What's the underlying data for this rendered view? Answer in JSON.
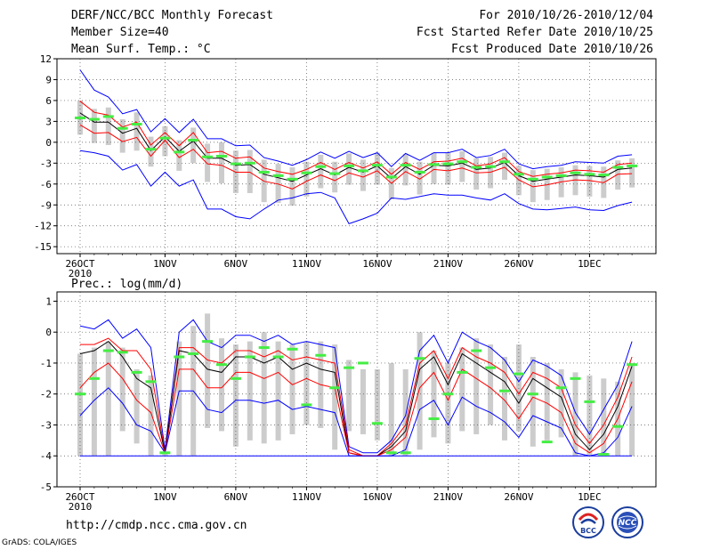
{
  "header": {
    "title": "DERF/NCC/BCC Monthly Forecast",
    "member_size": "Member Size=40",
    "variable": "Mean Surf. Temp.: °C",
    "period": "For 2010/10/26-2010/12/04",
    "fcst_started": "Fcst Started Refer Date 2010/10/25",
    "fcst_produced": "Fcst Produced Date 2010/10/26"
  },
  "footer": {
    "url": "http://cmdp.ncc.cma.gov.cn",
    "grads": "GrADS: COLA/IGES",
    "logo_bcc_text": "BCC",
    "logo_ncc_text": "NCC"
  },
  "colors": {
    "ensemble_mean": "#000000",
    "std_band": "#ff0000",
    "range_envelope": "#0000ff",
    "observed_marker": "#44ee44",
    "member_bar": "#cccccc"
  },
  "chart_data": [
    {
      "type": "line",
      "title": "Mean Surf. Temp.: °C",
      "ylim": [
        -16,
        12
      ],
      "yticks": [
        12,
        9,
        6,
        3,
        0,
        -3,
        -6,
        -9,
        -12,
        -15
      ],
      "x_days": 40,
      "xticks": [
        {
          "day": 0,
          "label": "26OCT",
          "sub": "2010"
        },
        {
          "day": 6,
          "label": "1NOV"
        },
        {
          "day": 11,
          "label": "6NOV"
        },
        {
          "day": 16,
          "label": "11NOV"
        },
        {
          "day": 21,
          "label": "16NOV"
        },
        {
          "day": 26,
          "label": "21NOV"
        },
        {
          "day": 31,
          "label": "26NOV"
        },
        {
          "day": 36,
          "label": "1DEC"
        }
      ],
      "series": [
        {
          "name": "max",
          "values": [
            10.4,
            7.5,
            6.5,
            4.1,
            4.7,
            1.5,
            3.4,
            1.4,
            3.3,
            0.5,
            0.5,
            -0.5,
            -0.4,
            -2.2,
            -2.7,
            -3.3,
            -2.5,
            -1.4,
            -2.3,
            -1.3,
            -2.2,
            -1.5,
            -3.5,
            -1.6,
            -2.6,
            -1.5,
            -1.5,
            -1.0,
            -2.2,
            -1.9,
            -1.0,
            -3.1,
            -3.8,
            -3.5,
            -3.3,
            -2.8,
            -2.9,
            -3.0,
            -2.0,
            -1.8
          ]
        },
        {
          "name": "std_upper",
          "values": [
            5.9,
            4.3,
            3.9,
            2.2,
            2.9,
            -0.4,
            1.4,
            -0.5,
            1.4,
            -1.5,
            -1.3,
            -2.3,
            -2.1,
            -3.7,
            -4.2,
            -4.6,
            -3.9,
            -2.9,
            -3.9,
            -2.9,
            -3.7,
            -2.8,
            -4.6,
            -2.9,
            -3.9,
            -2.8,
            -2.7,
            -2.3,
            -3.4,
            -3.1,
            -2.2,
            -4.2,
            -4.9,
            -4.6,
            -4.4,
            -4.0,
            -4.1,
            -4.3,
            -3.2,
            -3.0
          ]
        },
        {
          "name": "mean",
          "values": [
            4.2,
            2.9,
            2.9,
            1.3,
            2.0,
            -1.2,
            0.8,
            -1.3,
            0.2,
            -2.3,
            -2.3,
            -3.3,
            -3.2,
            -4.6,
            -5.1,
            -5.6,
            -4.7,
            -3.8,
            -4.7,
            -3.6,
            -4.3,
            -3.4,
            -5.2,
            -3.5,
            -4.6,
            -3.3,
            -3.4,
            -3.0,
            -3.9,
            -3.7,
            -2.9,
            -4.8,
            -5.6,
            -5.3,
            -5.0,
            -4.7,
            -4.8,
            -5.0,
            -3.9,
            -3.7
          ]
        },
        {
          "name": "std_lower",
          "values": [
            2.5,
            1.3,
            1.4,
            0.1,
            0.7,
            -2.0,
            0.3,
            -2.2,
            -1.0,
            -3.1,
            -3.3,
            -4.3,
            -4.3,
            -5.6,
            -6.0,
            -6.7,
            -5.6,
            -4.7,
            -5.5,
            -4.4,
            -5.0,
            -4.1,
            -5.9,
            -4.2,
            -5.3,
            -3.9,
            -4.1,
            -3.7,
            -4.4,
            -4.3,
            -3.6,
            -5.4,
            -6.4,
            -6.1,
            -5.7,
            -5.4,
            -5.5,
            -5.8,
            -4.6,
            -4.5
          ]
        },
        {
          "name": "min",
          "values": [
            -1.2,
            -1.5,
            -2.0,
            -4.0,
            -3.2,
            -6.3,
            -4.3,
            -6.3,
            -5.4,
            -9.6,
            -9.6,
            -10.7,
            -11.0,
            -9.6,
            -8.3,
            -8.0,
            -7.4,
            -7.2,
            -8.0,
            -11.7,
            -11.0,
            -10.2,
            -8.0,
            -8.2,
            -7.8,
            -7.4,
            -7.6,
            -7.6,
            -8.0,
            -8.3,
            -7.4,
            -8.8,
            -9.6,
            -9.7,
            -9.5,
            -9.3,
            -9.7,
            -9.8,
            -9.1,
            -8.6
          ]
        },
        {
          "name": "observed",
          "values": [
            3.5,
            3.3,
            3.7,
            2.0,
            2.6,
            -1.0,
            0.6,
            -1.4,
            0.3,
            -2.1,
            -2.0,
            -3.1,
            -3.0,
            -4.3,
            -4.8,
            -5.3,
            -4.4,
            -3.5,
            -4.5,
            -3.4,
            -4.1,
            -3.3,
            -5.0,
            -3.3,
            -4.3,
            -3.2,
            -3.1,
            -2.8,
            -3.6,
            -3.5,
            -2.8,
            -4.6,
            -5.3,
            -5.0,
            -4.8,
            -4.4,
            -4.6,
            -4.7,
            -3.6,
            -3.4
          ]
        }
      ],
      "bars": {
        "high": [
          6.0,
          4.8,
          5.0,
          3.3,
          4.3,
          0.8,
          2.3,
          0.3,
          2.1,
          -0.2,
          0.0,
          -1.2,
          -1.1,
          -2.5,
          -3.1,
          -3.6,
          -2.8,
          -1.8,
          -2.8,
          -1.6,
          -2.5,
          -1.5,
          -3.7,
          -1.7,
          -2.8,
          -1.5,
          -1.5,
          -1.3,
          -2.3,
          -2.1,
          -1.5,
          -3.4,
          -4.0,
          -3.8,
          -3.6,
          -3.3,
          -3.4,
          -3.5,
          -2.6,
          -2.3
        ],
        "low": [
          1.1,
          -0.1,
          -0.4,
          -1.5,
          -1.2,
          -3.5,
          -2.0,
          -4.1,
          -3.0,
          -5.7,
          -5.9,
          -7.3,
          -7.3,
          -8.6,
          -8.7,
          -9.1,
          -7.8,
          -6.6,
          -7.2,
          -6.1,
          -7.0,
          -6.1,
          -8.2,
          -6.2,
          -7.5,
          -6.0,
          -6.1,
          -5.7,
          -6.8,
          -6.6,
          -5.4,
          -7.6,
          -8.6,
          -8.3,
          -7.9,
          -7.6,
          -7.8,
          -8.0,
          -6.8,
          -6.5
        ]
      }
    },
    {
      "type": "line",
      "title": "Prec.: log(mm/d)",
      "ylim": [
        -5,
        1.3
      ],
      "yticks": [
        1,
        0,
        -1,
        -2,
        -3,
        -4,
        -5
      ],
      "x_days": 40,
      "xticks": [
        {
          "day": 0,
          "label": "26OCT",
          "sub": "2010"
        },
        {
          "day": 6,
          "label": "1NOV"
        },
        {
          "day": 11,
          "label": "6NOV"
        },
        {
          "day": 16,
          "label": "11NOV"
        },
        {
          "day": 21,
          "label": "16NOV"
        },
        {
          "day": 26,
          "label": "21NOV"
        },
        {
          "day": 31,
          "label": "26NOV"
        },
        {
          "day": 36,
          "label": "1DEC"
        }
      ],
      "series": [
        {
          "name": "max",
          "values": [
            0.2,
            0.1,
            0.4,
            -0.2,
            0.1,
            -0.5,
            -3.8,
            0.0,
            0.4,
            -0.3,
            -0.5,
            -0.1,
            -0.1,
            -0.3,
            -0.1,
            -0.4,
            -0.3,
            -0.4,
            -0.5,
            -3.7,
            -3.9,
            -3.9,
            -3.5,
            -2.7,
            -0.6,
            -0.1,
            -1.0,
            0.0,
            -0.3,
            -0.5,
            -0.9,
            -1.6,
            -0.9,
            -1.1,
            -1.4,
            -2.6,
            -3.3,
            -2.5,
            -1.7,
            -0.3
          ]
        },
        {
          "name": "std_upper",
          "values": [
            -0.4,
            -0.4,
            -0.2,
            -0.6,
            -0.6,
            -1.2,
            -3.9,
            -0.5,
            -0.5,
            -0.9,
            -1.0,
            -0.6,
            -0.6,
            -0.8,
            -0.6,
            -0.9,
            -0.8,
            -0.9,
            -1.0,
            -3.8,
            -4.0,
            -4.0,
            -3.6,
            -3.0,
            -1.0,
            -0.6,
            -1.5,
            -0.5,
            -0.8,
            -1.0,
            -1.3,
            -2.0,
            -1.3,
            -1.5,
            -1.8,
            -3.0,
            -3.6,
            -3.0,
            -2.1,
            -0.8
          ]
        },
        {
          "name": "mean",
          "values": [
            -0.7,
            -0.6,
            -0.3,
            -0.8,
            -1.5,
            -1.8,
            -3.9,
            -0.6,
            -0.7,
            -1.2,
            -1.3,
            -0.8,
            -0.8,
            -1.0,
            -0.8,
            -1.2,
            -1.0,
            -1.2,
            -1.3,
            -3.9,
            -4.0,
            -4.0,
            -3.7,
            -3.2,
            -1.2,
            -0.8,
            -1.7,
            -0.7,
            -1.0,
            -1.3,
            -1.6,
            -2.3,
            -1.5,
            -1.8,
            -2.1,
            -3.3,
            -3.8,
            -3.3,
            -2.4,
            -1.1
          ]
        },
        {
          "name": "std_lower",
          "values": [
            -1.8,
            -1.3,
            -1.0,
            -1.5,
            -2.2,
            -2.6,
            -3.9,
            -1.2,
            -1.2,
            -1.8,
            -1.8,
            -1.3,
            -1.3,
            -1.5,
            -1.3,
            -1.7,
            -1.5,
            -1.7,
            -1.8,
            -3.9,
            -4.0,
            -4.0,
            -3.8,
            -3.4,
            -1.8,
            -1.3,
            -2.2,
            -1.2,
            -1.5,
            -1.8,
            -2.2,
            -2.8,
            -2.1,
            -2.3,
            -2.6,
            -3.6,
            -3.9,
            -3.6,
            -2.8,
            -1.6
          ]
        },
        {
          "name": "min",
          "values": [
            -2.7,
            -2.2,
            -1.8,
            -2.3,
            -3.0,
            -3.2,
            -3.9,
            -1.9,
            -1.9,
            -2.5,
            -2.6,
            -2.2,
            -2.2,
            -2.3,
            -2.2,
            -2.5,
            -2.4,
            -2.5,
            -2.6,
            -4.0,
            -4.0,
            -4.0,
            -4.0,
            -3.8,
            -2.5,
            -2.2,
            -3.0,
            -2.1,
            -2.4,
            -2.6,
            -2.9,
            -3.4,
            -2.7,
            -2.9,
            -3.1,
            -3.9,
            -4.0,
            -3.9,
            -3.4,
            -2.4
          ]
        },
        {
          "name": "observed",
          "values": [
            -2.0,
            -1.5,
            -0.6,
            -0.65,
            -1.3,
            -1.6,
            -3.9,
            -0.8,
            -0.7,
            -0.3,
            -1.05,
            -1.5,
            -0.8,
            -0.5,
            -0.8,
            -0.55,
            -2.35,
            -0.75,
            -1.8,
            -1.15,
            -1.0,
            -2.95,
            -3.9,
            -3.9,
            -0.85,
            -2.8,
            -2.0,
            -1.3,
            -0.6,
            -1.15,
            -1.9,
            -1.35,
            -2.0,
            -3.55,
            -1.8,
            -1.5,
            -2.25,
            -3.95,
            -3.05,
            -1.05
          ]
        }
      ],
      "baseline": -4.0,
      "bars": {
        "high": [
          -0.7,
          -0.5,
          -0.3,
          -0.5,
          -1.2,
          -1.4,
          -3.9,
          -0.3,
          0.2,
          0.6,
          -0.2,
          -0.4,
          -0.3,
          0.0,
          -0.3,
          -0.4,
          -0.3,
          -0.3,
          -0.4,
          -0.9,
          -1.2,
          -1.2,
          -1.0,
          -1.2,
          0.0,
          -0.6,
          -1.0,
          -0.5,
          -0.2,
          -0.4,
          -0.8,
          -0.4,
          -0.8,
          -1.0,
          -1.2,
          -1.3,
          -1.4,
          -1.5,
          -1.6,
          -1.0
        ],
        "low": [
          -4.0,
          -4.0,
          -4.0,
          -3.2,
          -3.6,
          -4.0,
          -4.0,
          -4.0,
          -4.0,
          -3.1,
          -3.2,
          -3.7,
          -3.5,
          -3.6,
          -3.5,
          -3.3,
          -3.0,
          -3.1,
          -3.8,
          -3.2,
          -3.3,
          -3.5,
          -4.0,
          -4.0,
          -3.8,
          -3.4,
          -3.6,
          -3.2,
          -3.3,
          -3.0,
          -3.5,
          -3.2,
          -3.7,
          -3.5,
          -3.4,
          -4.0,
          -4.0,
          -4.0,
          -4.0,
          -4.0
        ]
      }
    }
  ]
}
